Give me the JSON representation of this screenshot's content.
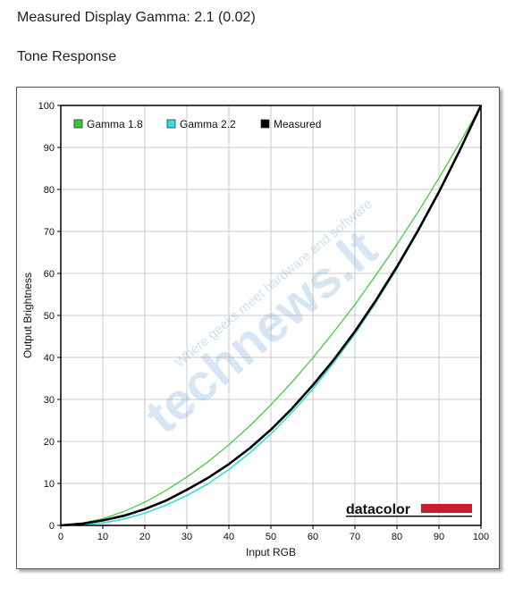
{
  "page": {
    "title": "Measured Display Gamma: 2.1 (0.02)",
    "subtitle": "Tone Response"
  },
  "watermark": {
    "brand": "technews.lt",
    "tagline": "Where geeks meet hardware and software"
  },
  "logo": {
    "text": "datacolor",
    "bar_color": "#c4202f"
  },
  "chart_data": {
    "type": "line",
    "title": "",
    "xlabel": "Input RGB",
    "ylabel": "Output Brightness",
    "xlim": [
      0,
      100
    ],
    "ylim": [
      0,
      100
    ],
    "xticks": [
      0,
      10,
      20,
      30,
      40,
      50,
      60,
      70,
      80,
      90,
      100
    ],
    "yticks": [
      0,
      10,
      20,
      30,
      40,
      50,
      60,
      70,
      80,
      90,
      100
    ],
    "grid": true,
    "legend": "top-left",
    "series": [
      {
        "name": "Gamma 1.8",
        "color": "#33cc33",
        "x": [
          0,
          5,
          10,
          15,
          20,
          25,
          30,
          35,
          40,
          45,
          50,
          55,
          60,
          65,
          70,
          75,
          80,
          85,
          90,
          95,
          100
        ],
        "y": [
          0,
          0.5,
          1.6,
          3.3,
          5.5,
          8.3,
          11.5,
          15.1,
          19.2,
          23.7,
          28.7,
          34.1,
          39.9,
          46.1,
          52.6,
          59.6,
          66.9,
          74.6,
          82.7,
          91.2,
          100
        ]
      },
      {
        "name": "Gamma 2.2",
        "color": "#33dddd",
        "x": [
          0,
          5,
          10,
          15,
          20,
          25,
          30,
          35,
          40,
          45,
          50,
          55,
          60,
          65,
          70,
          75,
          80,
          85,
          90,
          95,
          100
        ],
        "y": [
          0,
          0.1,
          0.6,
          1.5,
          2.9,
          4.8,
          7.1,
          9.9,
          13.3,
          17.3,
          21.8,
          26.9,
          32.5,
          38.8,
          45.6,
          53.1,
          61.2,
          69.9,
          79.3,
          89.3,
          100
        ]
      },
      {
        "name": "Measured",
        "color": "#000000",
        "x": [
          0,
          5,
          10,
          15,
          20,
          25,
          30,
          35,
          40,
          45,
          50,
          55,
          60,
          65,
          70,
          75,
          80,
          85,
          90,
          95,
          100
        ],
        "y": [
          0,
          0.4,
          1.2,
          2.3,
          3.9,
          5.9,
          8.5,
          11.3,
          14.6,
          18.4,
          22.8,
          27.8,
          33.4,
          39.5,
          46.2,
          53.6,
          61.6,
          70.2,
          79.4,
          89.4,
          100
        ]
      }
    ]
  }
}
